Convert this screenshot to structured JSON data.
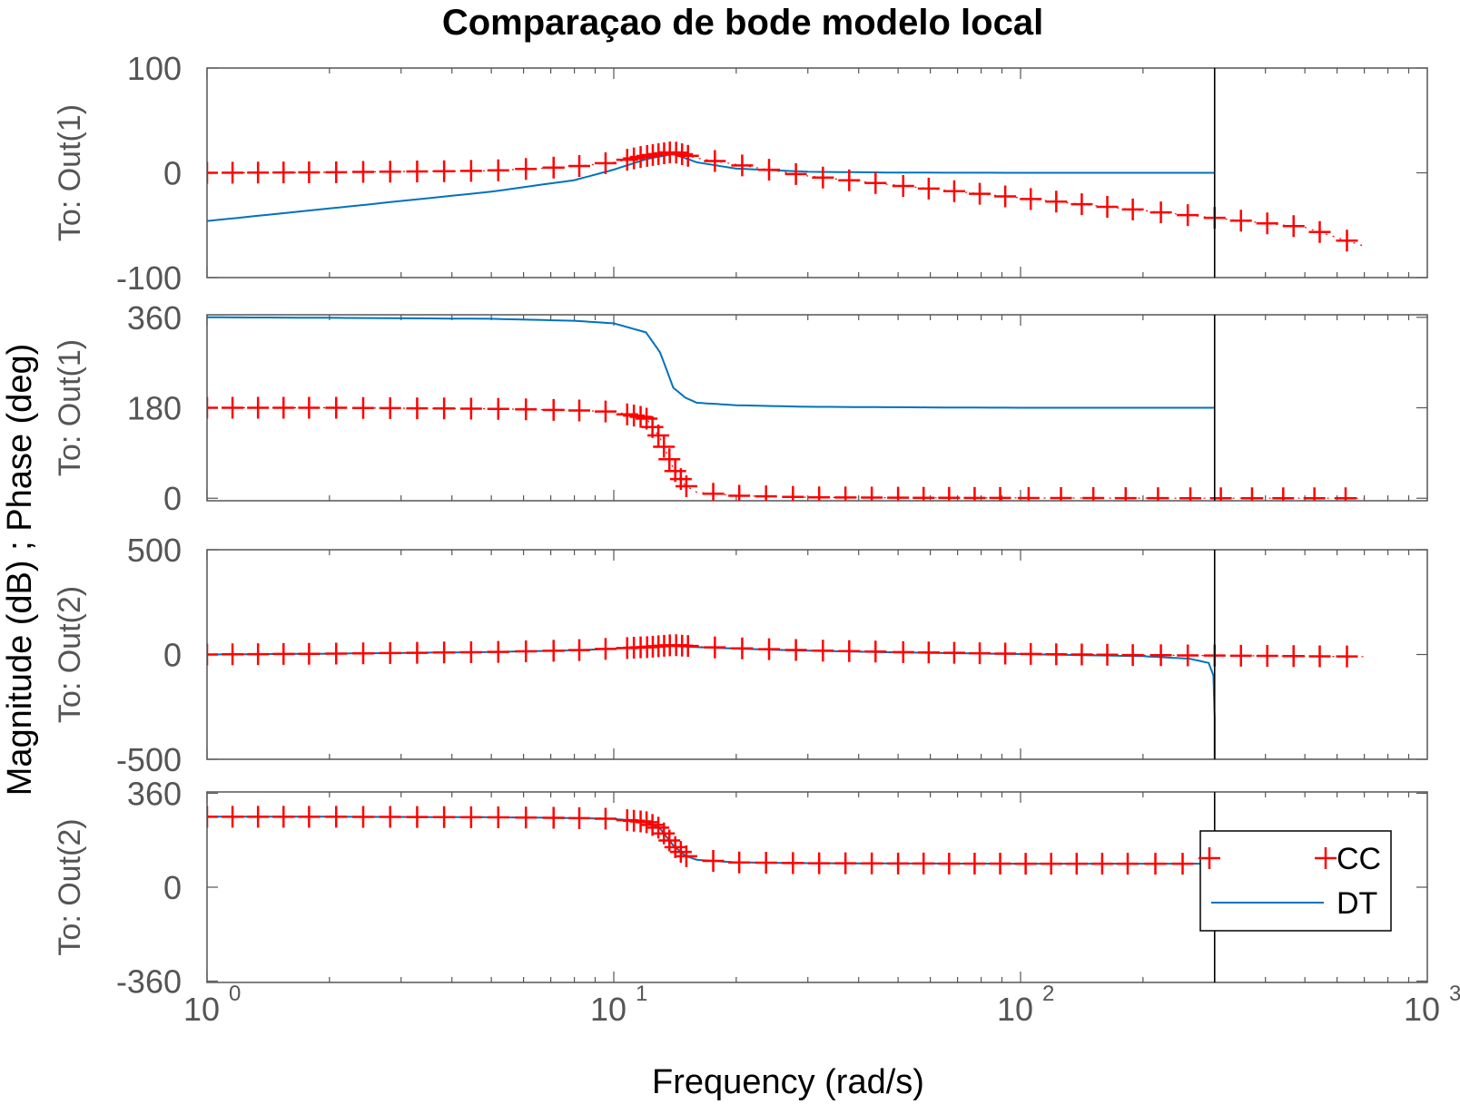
{
  "chart_data": {
    "type": "line",
    "title": "Comparaçao de bode modelo local",
    "xlabel": "Frequency  (rad/s)",
    "ylabel": "Magnitude (dB) ; Phase (deg)",
    "xscale": "log",
    "xlim": [
      1,
      1000
    ],
    "xticks": [
      {
        "base": "10",
        "exp": "0"
      },
      {
        "base": "10",
        "exp": "1"
      },
      {
        "base": "10",
        "exp": "2"
      },
      {
        "base": "10",
        "exp": "3"
      }
    ],
    "nyquist_line": 300,
    "legend": {
      "placement": "lower-right of bottom panel",
      "entries": [
        "CC",
        "DT"
      ]
    },
    "colors": {
      "CC": "#ff0000",
      "DT": "#0072bd",
      "axes": "#555555",
      "vline": "#000000"
    },
    "panels": [
      {
        "ylabel": "To: Out(1)",
        "ylim": [
          -100,
          100
        ],
        "yticks": [
          "100",
          "0",
          "-100"
        ],
        "series": [
          {
            "name": "CC",
            "x": [
              1,
              2,
              5,
              8,
              10,
              12,
              14,
              16,
              20,
              30,
              50,
              100,
              200,
              300,
              500,
              700
            ],
            "values": [
              0,
              0.5,
              2,
              6,
              10,
              16,
              20,
              14,
              8,
              -3,
              -12,
              -24,
              -36,
              -43,
              -52,
              -70
            ]
          },
          {
            "name": "DT",
            "x": [
              1,
              2,
              5,
              8,
              10,
              12,
              14,
              16,
              20,
              30,
              50,
              100,
              200,
              300
            ],
            "values": [
              -46,
              -34,
              -18,
              -7,
              3,
              13,
              18,
              10,
              4,
              1,
              0.2,
              0,
              0,
              0
            ]
          }
        ]
      },
      {
        "ylabel": "To: Out(1)",
        "ylim": [
          -5,
          365
        ],
        "yticks": [
          "360",
          "180",
          "0"
        ],
        "series": [
          {
            "name": "CC",
            "x": [
              1,
              2,
              5,
              8,
              10,
              12,
              13,
              14,
              15,
              16,
              20,
              30,
              50,
              100,
              300,
              700
            ],
            "values": [
              180,
              180,
              178,
              175,
              172,
              160,
              120,
              60,
              25,
              12,
              5,
              2,
              1,
              0.5,
              0,
              0
            ]
          },
          {
            "name": "DT",
            "x": [
              1,
              2,
              5,
              8,
              10,
              12,
              13,
              14,
              15,
              16,
              20,
              30,
              50,
              100,
              300
            ],
            "values": [
              360,
              359,
              357,
              353,
              348,
              330,
              290,
              220,
              200,
              190,
              185,
              182,
              181,
              180,
              180
            ]
          }
        ]
      },
      {
        "ylabel": "To: Out(2)",
        "ylim": [
          -500,
          500
        ],
        "yticks": [
          "500",
          "0",
          "-500"
        ],
        "series": [
          {
            "name": "CC",
            "x": [
              1,
              2,
              5,
              8,
              10,
              12,
              14,
              16,
              20,
              30,
              50,
              100,
              200,
              300,
              500,
              700
            ],
            "values": [
              0,
              4,
              12,
              20,
              28,
              35,
              45,
              38,
              30,
              20,
              12,
              3,
              -3,
              -5,
              -8,
              -10
            ]
          },
          {
            "name": "DT",
            "x": [
              1,
              2,
              5,
              8,
              10,
              12,
              14,
              16,
              20,
              30,
              50,
              100,
              200,
              260,
              290,
              298,
              300,
              300
            ],
            "values": [
              0,
              4,
              12,
              20,
              28,
              35,
              40,
              35,
              28,
              18,
              10,
              2,
              -8,
              -20,
              -40,
              -100,
              -300,
              -500
            ]
          }
        ]
      },
      {
        "ylabel": "To: Out(2)",
        "ylim": [
          -365,
          365
        ],
        "yticks": [
          "360",
          "0",
          "-360"
        ],
        "series": [
          {
            "name": "CC",
            "x": [
              1,
              2,
              5,
              8,
              10,
              12,
              13,
              14,
              15,
              16,
              20,
              30,
              50,
              100,
              200,
              280
            ],
            "values": [
              270,
              270,
              268,
              265,
              262,
              250,
              225,
              160,
              120,
              105,
              95,
              92,
              91,
              90,
              90,
              90
            ]
          },
          {
            "name": "DT",
            "x": [
              1,
              2,
              5,
              8,
              10,
              12,
              13,
              14,
              15,
              16,
              20,
              30,
              50,
              100,
              200,
              280
            ],
            "values": [
              270,
              270,
              268,
              265,
              262,
              250,
              225,
              160,
              120,
              105,
              95,
              92,
              91,
              90,
              90,
              90
            ]
          }
        ]
      }
    ]
  }
}
